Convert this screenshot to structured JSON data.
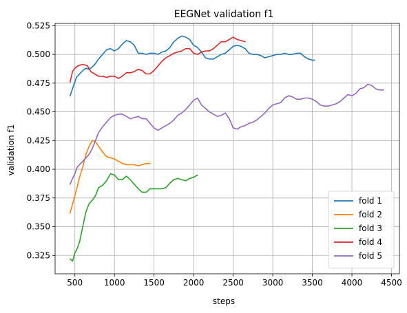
{
  "chart_data": {
    "type": "line",
    "title": "EEGNet validation f1",
    "xlabel": "steps",
    "ylabel": "validation f1",
    "xlim": [
      250,
      4600
    ],
    "ylim": [
      0.309,
      0.527
    ],
    "xticks": [
      500,
      1000,
      1500,
      2000,
      2500,
      3000,
      3500,
      4000,
      4500
    ],
    "yticks": [
      0.325,
      0.35,
      0.375,
      0.4,
      0.425,
      0.45,
      0.475,
      0.5,
      0.525
    ],
    "xtick_labels": [
      "500",
      "1000",
      "1500",
      "2000",
      "2500",
      "3000",
      "3500",
      "4000",
      "4500"
    ],
    "ytick_labels": [
      "0.325",
      "0.350",
      "0.375",
      "0.400",
      "0.425",
      "0.450",
      "0.475",
      "0.500",
      "0.525"
    ],
    "grid": true,
    "legend_position": "lower-right",
    "series": [
      {
        "name": "fold 1",
        "color": "#1f77b4",
        "x": [
          440,
          480,
          520,
          560,
          600,
          640,
          680,
          720,
          760,
          800,
          850,
          900,
          950,
          1000,
          1050,
          1100,
          1150,
          1200,
          1250,
          1300,
          1350,
          1400,
          1450,
          1500,
          1550,
          1600,
          1650,
          1700,
          1750,
          1800,
          1850,
          1900,
          1950,
          2000,
          2050,
          2100,
          2150,
          2200,
          2250,
          2300,
          2350,
          2400,
          2450,
          2500,
          2550,
          2600,
          2650,
          2700,
          2750,
          2800,
          2850,
          2900,
          2950,
          3000,
          3050,
          3100,
          3150,
          3200,
          3250,
          3300,
          3350,
          3400,
          3450,
          3500,
          3530
        ],
        "values": [
          0.464,
          0.472,
          0.48,
          0.483,
          0.486,
          0.488,
          0.487,
          0.489,
          0.492,
          0.496,
          0.5,
          0.504,
          0.505,
          0.503,
          0.505,
          0.509,
          0.512,
          0.511,
          0.508,
          0.501,
          0.501,
          0.5,
          0.501,
          0.501,
          0.5,
          0.502,
          0.503,
          0.506,
          0.511,
          0.514,
          0.516,
          0.515,
          0.513,
          0.508,
          0.506,
          0.502,
          0.497,
          0.496,
          0.496,
          0.498,
          0.5,
          0.501,
          0.504,
          0.507,
          0.508,
          0.507,
          0.505,
          0.501,
          0.5,
          0.5,
          0.499,
          0.497,
          0.498,
          0.499,
          0.5,
          0.5,
          0.501,
          0.5,
          0.5,
          0.501,
          0.501,
          0.498,
          0.496,
          0.495,
          0.495
        ]
      },
      {
        "name": "fold 2",
        "color": "#ff7f0e",
        "x": [
          440,
          480,
          520,
          560,
          600,
          640,
          680,
          720,
          760,
          800,
          850,
          900,
          950,
          1000,
          1050,
          1100,
          1150,
          1200,
          1250,
          1300,
          1350,
          1400,
          1450
        ],
        "values": [
          0.362,
          0.372,
          0.382,
          0.393,
          0.402,
          0.413,
          0.42,
          0.425,
          0.424,
          0.42,
          0.415,
          0.411,
          0.41,
          0.409,
          0.407,
          0.405,
          0.404,
          0.404,
          0.404,
          0.403,
          0.404,
          0.405,
          0.405
        ]
      },
      {
        "name": "fold 3",
        "color": "#2ca02c",
        "x": [
          440,
          470,
          500,
          530,
          560,
          600,
          640,
          680,
          720,
          760,
          800,
          850,
          900,
          950,
          1000,
          1050,
          1100,
          1150,
          1200,
          1250,
          1300,
          1350,
          1400,
          1450,
          1500,
          1550,
          1600,
          1650,
          1700,
          1750,
          1800,
          1850,
          1900,
          1950,
          2000,
          2050
        ],
        "values": [
          0.322,
          0.32,
          0.327,
          0.331,
          0.337,
          0.35,
          0.363,
          0.37,
          0.373,
          0.377,
          0.384,
          0.386,
          0.39,
          0.396,
          0.395,
          0.391,
          0.391,
          0.394,
          0.391,
          0.387,
          0.383,
          0.38,
          0.38,
          0.383,
          0.383,
          0.383,
          0.383,
          0.384,
          0.388,
          0.391,
          0.392,
          0.391,
          0.39,
          0.392,
          0.393,
          0.395
        ]
      },
      {
        "name": "fold 4",
        "color": "#d62728",
        "x": [
          440,
          470,
          500,
          540,
          580,
          620,
          660,
          700,
          750,
          800,
          850,
          900,
          950,
          1000,
          1050,
          1100,
          1150,
          1200,
          1250,
          1300,
          1350,
          1400,
          1450,
          1500,
          1550,
          1600,
          1650,
          1700,
          1750,
          1800,
          1850,
          1900,
          1950,
          2000,
          2050,
          2100,
          2150,
          2200,
          2250,
          2300,
          2350,
          2400,
          2450,
          2500,
          2550,
          2600,
          2650
        ],
        "values": [
          0.476,
          0.485,
          0.488,
          0.49,
          0.491,
          0.491,
          0.49,
          0.485,
          0.483,
          0.481,
          0.481,
          0.48,
          0.481,
          0.481,
          0.479,
          0.481,
          0.484,
          0.484,
          0.485,
          0.487,
          0.486,
          0.483,
          0.483,
          0.486,
          0.49,
          0.494,
          0.497,
          0.499,
          0.501,
          0.502,
          0.503,
          0.505,
          0.505,
          0.501,
          0.5,
          0.502,
          0.503,
          0.503,
          0.505,
          0.508,
          0.511,
          0.511,
          0.513,
          0.515,
          0.513,
          0.512,
          0.511
        ]
      },
      {
        "name": "fold 5",
        "color": "#9467bd",
        "x": [
          440,
          470,
          500,
          530,
          560,
          600,
          640,
          680,
          720,
          760,
          800,
          850,
          900,
          950,
          1000,
          1050,
          1100,
          1150,
          1200,
          1250,
          1300,
          1350,
          1400,
          1450,
          1500,
          1550,
          1600,
          1650,
          1700,
          1750,
          1800,
          1850,
          1900,
          1950,
          2000,
          2050,
          2100,
          2150,
          2200,
          2250,
          2300,
          2350,
          2400,
          2450,
          2500,
          2550,
          2600,
          2650,
          2700,
          2750,
          2800,
          2850,
          2900,
          2950,
          3000,
          3050,
          3100,
          3150,
          3200,
          3250,
          3300,
          3350,
          3400,
          3450,
          3500,
          3550,
          3600,
          3650,
          3700,
          3750,
          3800,
          3850,
          3900,
          3950,
          4000,
          4050,
          4100,
          4150,
          4200,
          4250,
          4300,
          4350,
          4400
        ],
        "values": [
          0.387,
          0.392,
          0.396,
          0.402,
          0.404,
          0.407,
          0.41,
          0.413,
          0.418,
          0.425,
          0.432,
          0.437,
          0.441,
          0.445,
          0.447,
          0.448,
          0.448,
          0.446,
          0.444,
          0.445,
          0.446,
          0.444,
          0.444,
          0.44,
          0.436,
          0.434,
          0.436,
          0.438,
          0.44,
          0.443,
          0.447,
          0.449,
          0.452,
          0.456,
          0.46,
          0.462,
          0.456,
          0.453,
          0.45,
          0.448,
          0.446,
          0.447,
          0.449,
          0.444,
          0.436,
          0.435,
          0.437,
          0.438,
          0.44,
          0.441,
          0.443,
          0.446,
          0.449,
          0.453,
          0.456,
          0.457,
          0.458,
          0.462,
          0.464,
          0.463,
          0.461,
          0.461,
          0.462,
          0.462,
          0.461,
          0.459,
          0.456,
          0.455,
          0.455,
          0.456,
          0.457,
          0.459,
          0.462,
          0.465,
          0.464,
          0.466,
          0.47,
          0.471,
          0.474,
          0.473,
          0.47,
          0.469,
          0.469
        ]
      }
    ]
  }
}
